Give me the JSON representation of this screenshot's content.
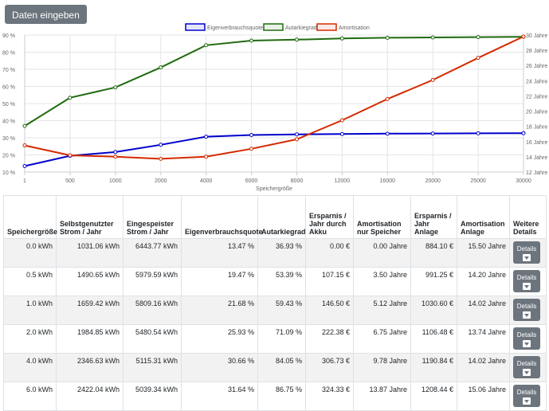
{
  "toolbar": {
    "enter_data_label": "Daten eingeben"
  },
  "chart_data": {
    "type": "line",
    "xlabel": "Speichergröße",
    "categories": [
      "1",
      "500",
      "1000",
      "2000",
      "4000",
      "6000",
      "8000",
      "12000",
      "16000",
      "20000",
      "25000",
      "30000"
    ],
    "legend_position": "top-center",
    "grid": true,
    "y_left": {
      "ylim": [
        10,
        90
      ],
      "ticks": [
        "10 %",
        "20 %",
        "30 %",
        "40 %",
        "50 %",
        "60 %",
        "70 %",
        "80 %",
        "90 %"
      ]
    },
    "y_right": {
      "ylim": [
        12,
        30
      ],
      "ticks": [
        "12 Jahre",
        "14 Jahre",
        "16 Jahre",
        "18 Jahre",
        "20 Jahre",
        "22 Jahre",
        "24 Jahre",
        "26 Jahre",
        "28 Jahre",
        "30 Jahre"
      ]
    },
    "series": [
      {
        "name": "Eigenverbrauchsquote",
        "axis": "left",
        "color": "#0000cc",
        "values": [
          13.47,
          19.47,
          21.68,
          25.93,
          30.66,
          31.64,
          32.0,
          32.2,
          32.4,
          32.5,
          32.6,
          32.7
        ]
      },
      {
        "name": "Autarkiegrad",
        "axis": "left",
        "color": "#1f6b0f",
        "values": [
          36.93,
          53.39,
          59.43,
          71.09,
          84.05,
          86.75,
          87.3,
          88.0,
          88.4,
          88.6,
          88.8,
          89.0
        ]
      },
      {
        "name": "Amortisation",
        "axis": "right",
        "color": "#d42a00",
        "values": [
          15.5,
          14.2,
          14.02,
          13.74,
          14.02,
          15.06,
          16.3,
          18.8,
          21.6,
          24.1,
          27.0,
          29.8
        ]
      }
    ]
  },
  "table": {
    "headers": [
      "Speichergröße",
      "Selbstgenutzter Strom / Jahr",
      "Eingespeister Strom / Jahr",
      "Eigenverbrauchsquote",
      "Autarkiegrad",
      "Ersparnis / Jahr durch Akku",
      "Amortisation nur Speicher",
      "Ersparnis / Jahr Anlage",
      "Amortisation Anlage",
      "Weitere Details"
    ],
    "rows": [
      [
        "0.0 kWh",
        "1031.06 kWh",
        "6443.77 kWh",
        "13.47 %",
        "36.93 %",
        "0.00 €",
        "0.00 Jahre",
        "884.10 €",
        "15.50 Jahre"
      ],
      [
        "0.5 kWh",
        "1490.65 kWh",
        "5979.59 kWh",
        "19.47 %",
        "53.39 %",
        "107.15 €",
        "3.50 Jahre",
        "991.25 €",
        "14.20 Jahre"
      ],
      [
        "1.0 kWh",
        "1659.42 kWh",
        "5809.16 kWh",
        "21.68 %",
        "59.43 %",
        "146.50 €",
        "5.12 Jahre",
        "1030.60 €",
        "14.02 Jahre"
      ],
      [
        "2.0 kWh",
        "1984.85 kWh",
        "5480.54 kWh",
        "25.93 %",
        "71.09 %",
        "222.38 €",
        "6.75 Jahre",
        "1106.48 €",
        "13.74 Jahre"
      ],
      [
        "4.0 kWh",
        "2346.63 kWh",
        "5115.31 kWh",
        "30.66 %",
        "84.05 %",
        "306.73 €",
        "9.78 Jahre",
        "1190.84 €",
        "14.02 Jahre"
      ],
      [
        "6.0 kWh",
        "2422.04 kWh",
        "5039.34 kWh",
        "31.64 %",
        "86.75 %",
        "324.33 €",
        "13.87 Jahre",
        "1208.44 €",
        "15.06 Jahre"
      ]
    ],
    "details_label": "Details"
  }
}
